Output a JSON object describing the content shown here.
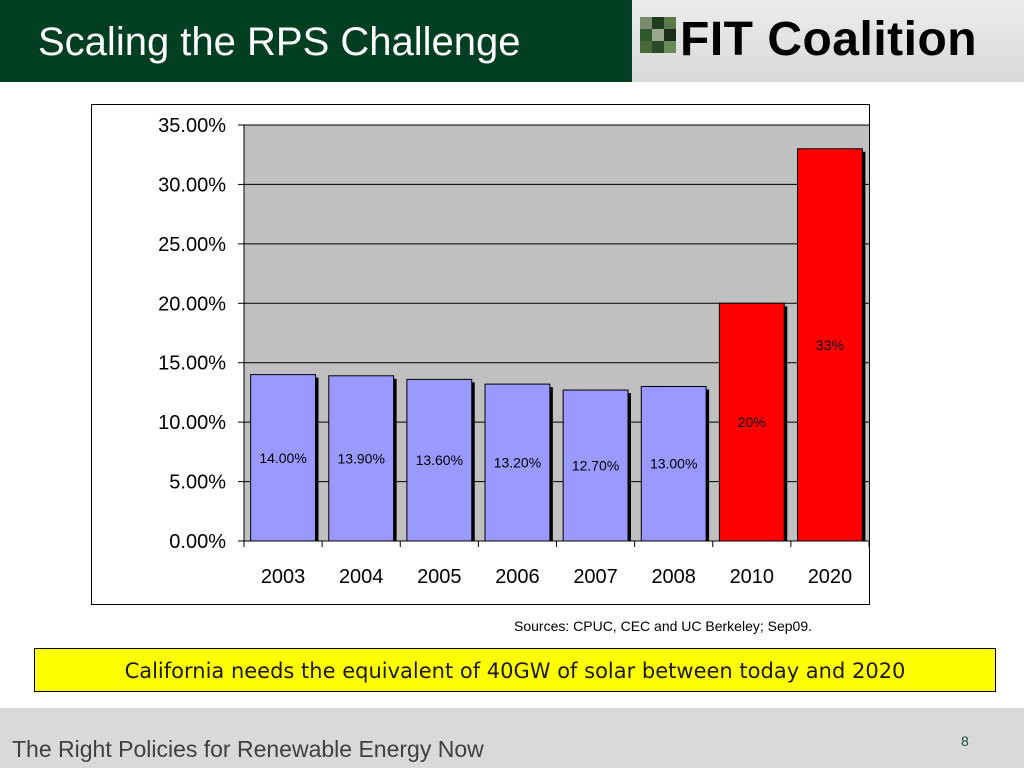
{
  "header": {
    "title": "Scaling the RPS Challenge",
    "logo_text": "FIT Coalition",
    "logo_icon": "checker-grid-icon"
  },
  "colors": {
    "title_bg": "#003f22",
    "historical_bar": "#9999ff",
    "target_bar": "#ff0000",
    "plot_area": "#c0c0c0",
    "callout_bg": "#ffff00",
    "footer_bg": "#d9d9d9"
  },
  "chart_data": {
    "type": "bar",
    "categories": [
      "2003",
      "2004",
      "2005",
      "2006",
      "2007",
      "2008",
      "2010",
      "2020"
    ],
    "values": [
      14.0,
      13.9,
      13.6,
      13.2,
      12.7,
      13.0,
      20.0,
      33.0
    ],
    "data_labels": [
      "14.00%",
      "13.90%",
      "13.60%",
      "13.20%",
      "12.70%",
      "13.00%",
      "20%",
      "33%"
    ],
    "bar_colors": [
      "#9999ff",
      "#9999ff",
      "#9999ff",
      "#9999ff",
      "#9999ff",
      "#9999ff",
      "#ff0000",
      "#ff0000"
    ],
    "ylim": [
      0,
      35
    ],
    "yticks": [
      0,
      5,
      10,
      15,
      20,
      25,
      30,
      35
    ],
    "ytick_labels": [
      "0.00%",
      "5.00%",
      "10.00%",
      "15.00%",
      "20.00%",
      "25.00%",
      "30.00%",
      "35.00%"
    ],
    "title": "",
    "xlabel": "",
    "ylabel": "",
    "grid": true,
    "legend": "none"
  },
  "sources": "Sources:  CPUC, CEC and UC Berkeley; Sep09.",
  "callout": "California needs the equivalent of 40GW of solar between today and 2020",
  "footer": {
    "text": "The Right Policies for Renewable Energy Now",
    "page_number": "8"
  }
}
